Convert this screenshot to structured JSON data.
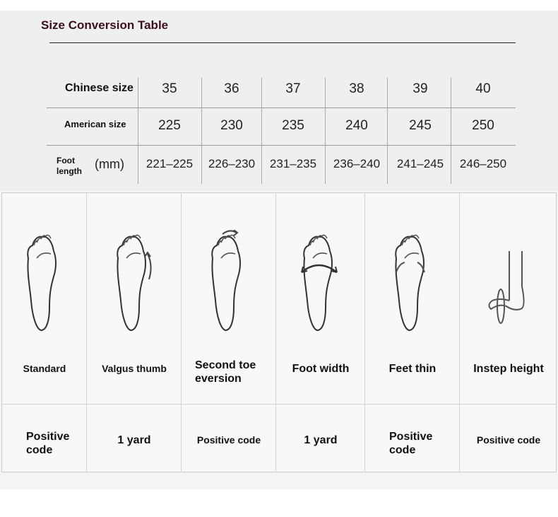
{
  "title": "Size Conversion Table",
  "table": {
    "rows": [
      {
        "label": "Chinese size",
        "values": [
          "35",
          "36",
          "37",
          "38",
          "39",
          "40"
        ]
      },
      {
        "label": "American size",
        "values": [
          "225",
          "230",
          "235",
          "240",
          "245",
          "250"
        ]
      },
      {
        "label": "Foot length",
        "unit": "(mm)",
        "values": [
          "221–225",
          "226–230",
          "231–235",
          "236–240",
          "241–245",
          "246–250"
        ]
      }
    ]
  },
  "foot_types": [
    {
      "name": "Standard",
      "advice": "Positive code",
      "icon": "foot-standard-icon"
    },
    {
      "name": "Valgus thumb",
      "advice": "1 yard",
      "icon": "foot-valgus-icon"
    },
    {
      "name": "Second toe eversion",
      "advice": "Positive code",
      "icon": "foot-second-toe-icon"
    },
    {
      "name": "Foot width",
      "advice": "1 yard",
      "icon": "foot-width-icon"
    },
    {
      "name": "Feet thin",
      "advice": "Positive code",
      "icon": "foot-thin-icon"
    },
    {
      "name": "Instep height",
      "advice": "Positive code",
      "icon": "foot-instep-icon"
    }
  ]
}
